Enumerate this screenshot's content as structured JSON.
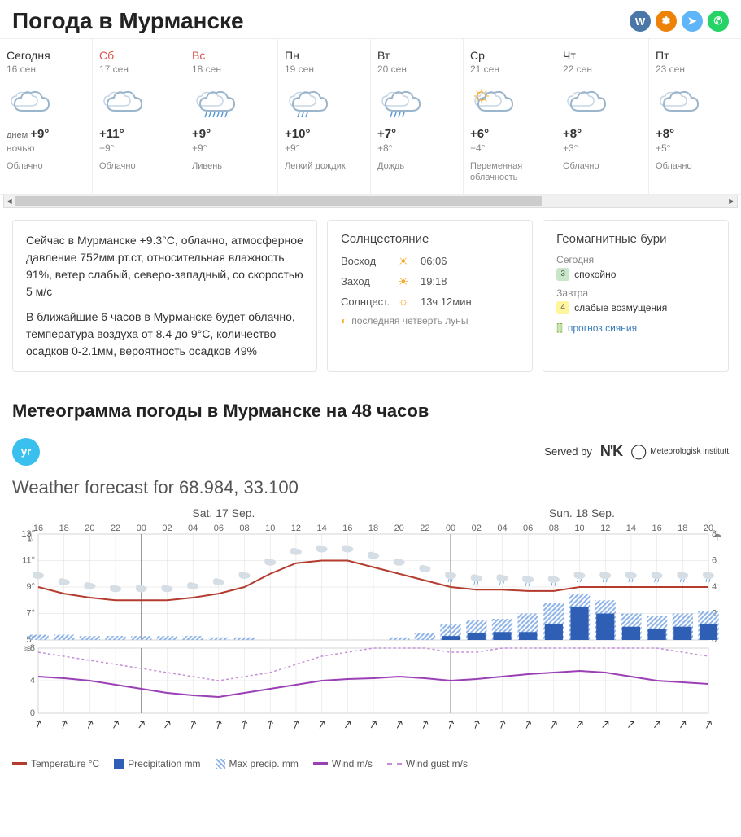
{
  "title": "Погода в Мурманске",
  "social": [
    {
      "name": "vk",
      "bg": "#4a76a8",
      "glyph": "W"
    },
    {
      "name": "ok",
      "bg": "#ee8208",
      "glyph": "✽"
    },
    {
      "name": "telegram",
      "bg": "#5eb5f7",
      "glyph": "➤"
    },
    {
      "name": "whatsapp",
      "bg": "#25d366",
      "glyph": "✆"
    }
  ],
  "days": [
    {
      "name": "Сегодня",
      "date": "16 сен",
      "weekend": false,
      "icon": "cloudy",
      "temp_label": "днем",
      "temp_day": "+9°",
      "night_label": "ночью",
      "temp_night": "",
      "desc": "Облачно"
    },
    {
      "name": "Сб",
      "date": "17 сен",
      "weekend": true,
      "icon": "cloudy",
      "temp_label": "",
      "temp_day": "+11°",
      "night_label": "",
      "temp_night": "+9°",
      "desc": "Облачно"
    },
    {
      "name": "Вс",
      "date": "18 сен",
      "weekend": true,
      "icon": "heavy-rain",
      "temp_label": "",
      "temp_day": "+9°",
      "night_label": "",
      "temp_night": "+9°",
      "desc": "Ливень"
    },
    {
      "name": "Пн",
      "date": "19 сен",
      "weekend": false,
      "icon": "light-rain",
      "temp_label": "",
      "temp_day": "+10°",
      "night_label": "",
      "temp_night": "+9°",
      "desc": "Легкий дождик"
    },
    {
      "name": "Вт",
      "date": "20 сен",
      "weekend": false,
      "icon": "rain",
      "temp_label": "",
      "temp_day": "+7°",
      "night_label": "",
      "temp_night": "+8°",
      "desc": "Дождь"
    },
    {
      "name": "Ср",
      "date": "21 сен",
      "weekend": false,
      "icon": "partly-cloudy",
      "temp_label": "",
      "temp_day": "+6°",
      "night_label": "",
      "temp_night": "+4°",
      "desc": "Переменная облачность"
    },
    {
      "name": "Чт",
      "date": "22 сен",
      "weekend": false,
      "icon": "cloudy",
      "temp_label": "",
      "temp_day": "+8°",
      "night_label": "",
      "temp_night": "+3°",
      "desc": "Облачно"
    },
    {
      "name": "Пт",
      "date": "23 сен",
      "weekend": false,
      "icon": "cloudy",
      "temp_label": "",
      "temp_day": "+8°",
      "night_label": "",
      "temp_night": "+5°",
      "desc": "Облачно"
    }
  ],
  "summary": {
    "p1": "Сейчас в Мурманске +9.3°C, облачно, атмосферное давление 752мм.рт.ст, относительная влажность 91%, ветер слабый, северо-западный, со скоростью 5 м/с",
    "p2": "В ближайшие 6 часов в Мурманске будет облачно, температура воздуха от 8.4 до 9°C, количество осадков 0-2.1мм, вероятность осадков 49%"
  },
  "sun": {
    "title": "Солнцестояние",
    "sunrise_lbl": "Восход",
    "sunrise": "06:06",
    "sunset_lbl": "Заход",
    "sunset": "19:18",
    "daylen_lbl": "Солнцест.",
    "daylen": "13ч 12мин",
    "moon": "последняя четверть луны"
  },
  "geo": {
    "title": "Геомагнитные бури",
    "today_lbl": "Сегодня",
    "today_badge": "3",
    "today_badge_bg": "#c8e6c9",
    "today_val": "спокойно",
    "tomorrow_lbl": "Завтра",
    "tomorrow_badge": "4",
    "tomorrow_badge_bg": "#fff59d",
    "tomorrow_val": "слабые возмущения",
    "aurora": "прогноз сияния"
  },
  "meteogram": {
    "title": "Метеограмма погоды в Мурманске на 48 часов",
    "served_by": "Served by",
    "nrk": "N'K",
    "mi": "Meteorologisk institutt",
    "subtitle": "Weather forecast for 68.984, 33.100",
    "day1": "Sat. 17 Sep.",
    "day2": "Sun. 18 Sep.",
    "hours": [
      "16",
      "18",
      "20",
      "22",
      "00",
      "02",
      "04",
      "06",
      "08",
      "10",
      "12",
      "14",
      "16",
      "18",
      "20",
      "22",
      "00",
      "02",
      "04",
      "06",
      "08",
      "10",
      "12",
      "14",
      "16",
      "18",
      "20"
    ],
    "temp_axis": {
      "min": 5,
      "max": 13,
      "ticks": [
        5,
        7,
        9,
        11,
        13
      ],
      "color": "#b43b2e"
    },
    "precip_axis": {
      "min": 0,
      "max": 8,
      "ticks": [
        0,
        2,
        4,
        6,
        8
      ],
      "color": "#2f5fb5"
    },
    "wind_axis": {
      "min": 0,
      "max": 8,
      "ticks": [
        0,
        4,
        8
      ]
    },
    "temp": [
      9,
      8.5,
      8.2,
      8,
      8,
      8,
      8.2,
      8.5,
      9,
      10,
      10.8,
      11,
      11,
      10.5,
      10,
      9.5,
      9,
      8.8,
      8.8,
      8.7,
      8.7,
      9,
      9,
      9,
      9,
      9,
      9
    ],
    "precip": [
      0,
      0,
      0,
      0,
      0,
      0,
      0,
      0,
      0,
      0,
      0,
      0,
      0,
      0,
      0,
      0,
      0.3,
      0.5,
      0.6,
      0.6,
      1.2,
      2.5,
      2.0,
      1.0,
      0.8,
      1.0,
      1.2
    ],
    "precip_max": [
      0.4,
      0.4,
      0.3,
      0.3,
      0.3,
      0.3,
      0.3,
      0.2,
      0.2,
      0,
      0,
      0,
      0,
      0,
      0.2,
      0.5,
      1.2,
      1.5,
      1.6,
      2.0,
      2.8,
      3.5,
      3.0,
      2.0,
      1.8,
      2.0,
      2.2
    ],
    "wind": [
      4.5,
      4.3,
      4,
      3.5,
      3,
      2.5,
      2.2,
      2,
      2.5,
      3,
      3.5,
      4,
      4.2,
      4.3,
      4.5,
      4.3,
      4,
      4.2,
      4.5,
      4.8,
      5,
      5.2,
      5,
      4.5,
      4,
      3.8,
      3.6
    ],
    "gust": [
      7.5,
      7,
      6.5,
      6,
      5.5,
      5,
      4.5,
      4,
      4.5,
      5,
      6,
      7,
      7.5,
      8,
      8.3,
      8,
      7.5,
      7.5,
      8,
      8.5,
      9,
      9.2,
      9,
      8.5,
      8,
      7.5,
      7
    ],
    "wind_dir": [
      200,
      200,
      205,
      210,
      215,
      215,
      200,
      195,
      190,
      190,
      200,
      210,
      215,
      215,
      210,
      205,
      200,
      200,
      200,
      205,
      210,
      220,
      225,
      225,
      220,
      215,
      210
    ],
    "legend": {
      "temp": "Temperature °C",
      "precip": "Precipitation mm",
      "precip_max": "Max precip. mm",
      "wind": "Wind m/s",
      "gust": "Wind gust m/s"
    },
    "colors": {
      "temp": "#b43b2e",
      "precip": "#2f5fb5",
      "precip_max": "#8fb5e8",
      "wind": "#9a3fb5",
      "gust": "#c58fd8",
      "grid": "#dddddd",
      "bg": "#ffffff"
    }
  }
}
